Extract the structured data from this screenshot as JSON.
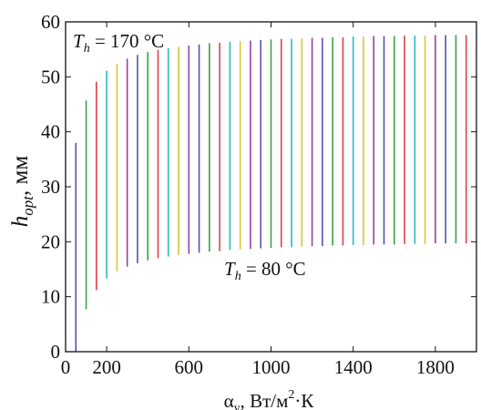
{
  "chart_data": {
    "type": "range-bar",
    "xlim": [
      0,
      2000
    ],
    "ylim": [
      0,
      60
    ],
    "x_ticks": [
      "0",
      "200",
      "600",
      "1000",
      "1400",
      "1800"
    ],
    "x_tick_values": [
      0,
      200,
      600,
      1000,
      1400,
      1800
    ],
    "y_ticks": [
      "0",
      "10",
      "20",
      "30",
      "40",
      "50",
      "60"
    ],
    "y_tick_values": [
      0,
      10,
      20,
      30,
      40,
      50,
      60
    ],
    "xlabel": {
      "main": "α",
      "sub": "y",
      "unit": ", Вт/м",
      "sup": "2",
      "tail": "·К"
    },
    "ylabel": {
      "main": "h",
      "sub": "opt",
      "unit": ", мм"
    },
    "annotations": {
      "upper": {
        "main": "T",
        "sub": "h",
        "rest": " = 170 °C"
      },
      "lower": {
        "main": "T",
        "sub": "h",
        "rest": " = 80 °C"
      }
    },
    "colors": [
      "#5b4fb0",
      "#3aa24a",
      "#e0404a",
      "#2bb8c4",
      "#d8c830",
      "#9b3fa0"
    ],
    "series": [
      {
        "x": 50,
        "y_low": 0,
        "y_high": 38
      },
      {
        "x": 100,
        "y_low": 7.7,
        "y_high": 45.7
      },
      {
        "x": 150,
        "y_low": 11.2,
        "y_high": 49.1
      },
      {
        "x": 200,
        "y_low": 13.3,
        "y_high": 51.1
      },
      {
        "x": 250,
        "y_low": 14.6,
        "y_high": 52.4
      },
      {
        "x": 300,
        "y_low": 15.5,
        "y_high": 53.3
      },
      {
        "x": 350,
        "y_low": 16.1,
        "y_high": 54
      },
      {
        "x": 400,
        "y_low": 16.6,
        "y_high": 54.5
      },
      {
        "x": 450,
        "y_low": 17,
        "y_high": 54.9
      },
      {
        "x": 500,
        "y_low": 17.3,
        "y_high": 55.2
      },
      {
        "x": 550,
        "y_low": 17.6,
        "y_high": 55.5
      },
      {
        "x": 600,
        "y_low": 17.8,
        "y_high": 55.7
      },
      {
        "x": 650,
        "y_low": 18,
        "y_high": 55.9
      },
      {
        "x": 700,
        "y_low": 18.2,
        "y_high": 56.1
      },
      {
        "x": 750,
        "y_low": 18.3,
        "y_high": 56.2
      },
      {
        "x": 800,
        "y_low": 18.5,
        "y_high": 56.4
      },
      {
        "x": 850,
        "y_low": 18.6,
        "y_high": 56.5
      },
      {
        "x": 900,
        "y_low": 18.7,
        "y_high": 56.6
      },
      {
        "x": 950,
        "y_low": 18.8,
        "y_high": 56.7
      },
      {
        "x": 1000,
        "y_low": 18.9,
        "y_high": 56.8
      },
      {
        "x": 1050,
        "y_low": 19,
        "y_high": 56.9
      },
      {
        "x": 1100,
        "y_low": 19,
        "y_high": 56.9
      },
      {
        "x": 1150,
        "y_low": 19.1,
        "y_high": 57
      },
      {
        "x": 1200,
        "y_low": 19.2,
        "y_high": 57.1
      },
      {
        "x": 1250,
        "y_low": 19.2,
        "y_high": 57.1
      },
      {
        "x": 1300,
        "y_low": 19.3,
        "y_high": 57.2
      },
      {
        "x": 1350,
        "y_low": 19.3,
        "y_high": 57.2
      },
      {
        "x": 1400,
        "y_low": 19.4,
        "y_high": 57.3
      },
      {
        "x": 1450,
        "y_low": 19.4,
        "y_high": 57.3
      },
      {
        "x": 1500,
        "y_low": 19.5,
        "y_high": 57.4
      },
      {
        "x": 1550,
        "y_low": 19.5,
        "y_high": 57.4
      },
      {
        "x": 1600,
        "y_low": 19.5,
        "y_high": 57.4
      },
      {
        "x": 1650,
        "y_low": 19.6,
        "y_high": 57.5
      },
      {
        "x": 1700,
        "y_low": 19.6,
        "y_high": 57.5
      },
      {
        "x": 1750,
        "y_low": 19.6,
        "y_high": 57.5
      },
      {
        "x": 1800,
        "y_low": 19.7,
        "y_high": 57.6
      },
      {
        "x": 1850,
        "y_low": 19.7,
        "y_high": 57.6
      },
      {
        "x": 1900,
        "y_low": 19.7,
        "y_high": 57.6
      },
      {
        "x": 1950,
        "y_low": 19.7,
        "y_high": 57.6
      }
    ]
  }
}
